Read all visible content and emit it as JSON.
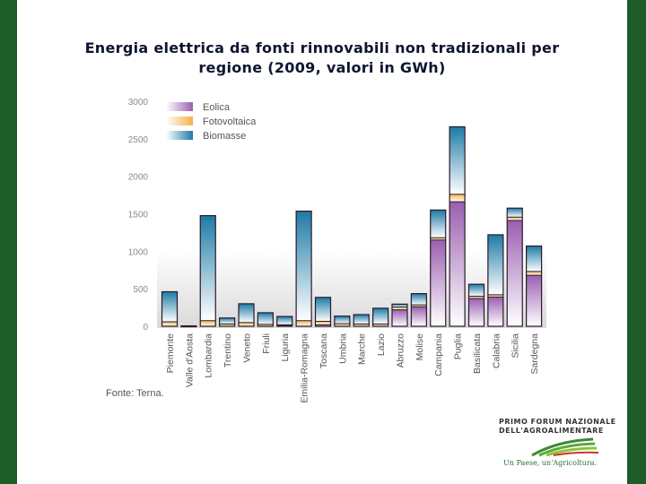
{
  "title_line1": "Energia elettrica da fonti rinnovabili non tradizionali per",
  "title_line2": "regione (2009, valori in GWh)",
  "source": "Fonte: Terna.",
  "logo": {
    "line1": "PRIMO FORUM NAZIONALE",
    "line2": "DELL'AGROALIMENTARE",
    "slogan": "Un Paese, un'Agricoltura."
  },
  "colors": {
    "eolica": "#9a5fb0",
    "fotovoltaica": "#f2b24a",
    "biomasse": "#1d7aa6",
    "frame": "#2a1a2a",
    "background_band": "#d9d9d9",
    "brand_green": "#1e5c2a"
  },
  "chart_data": {
    "type": "bar",
    "stacked": true,
    "ylim": [
      0,
      3000
    ],
    "yticks": [
      0,
      500,
      1000,
      1500,
      2000,
      2500,
      3000
    ],
    "legend_position": "top-left",
    "categories": [
      "Piemonte",
      "Valle d'Aosta",
      "Lombardia",
      "Trentino",
      "Veneto",
      "Friuli",
      "Liguria",
      "Emilia-Romagna",
      "Toscana",
      "Umbria",
      "Marche",
      "Lazio",
      "Abruzzo",
      "Molise",
      "Campania",
      "Puglia",
      "Basilicata",
      "Calabria",
      "Sicilia",
      "Sardegna"
    ],
    "series": [
      {
        "name": "Eolica",
        "values": [
          0,
          0,
          0,
          0,
          0,
          0,
          10,
          0,
          20,
          0,
          0,
          0,
          220,
          260,
          1150,
          1660,
          370,
          390,
          1410,
          680
        ]
      },
      {
        "name": "Fotovoltaica",
        "values": [
          60,
          5,
          75,
          30,
          50,
          25,
          10,
          75,
          45,
          35,
          30,
          30,
          35,
          25,
          30,
          100,
          30,
          30,
          45,
          50
        ]
      },
      {
        "name": "Biomasse",
        "values": [
          400,
          0,
          1400,
          80,
          250,
          155,
          110,
          1460,
          320,
          100,
          125,
          210,
          40,
          150,
          370,
          900,
          160,
          800,
          120,
          340
        ]
      }
    ]
  }
}
